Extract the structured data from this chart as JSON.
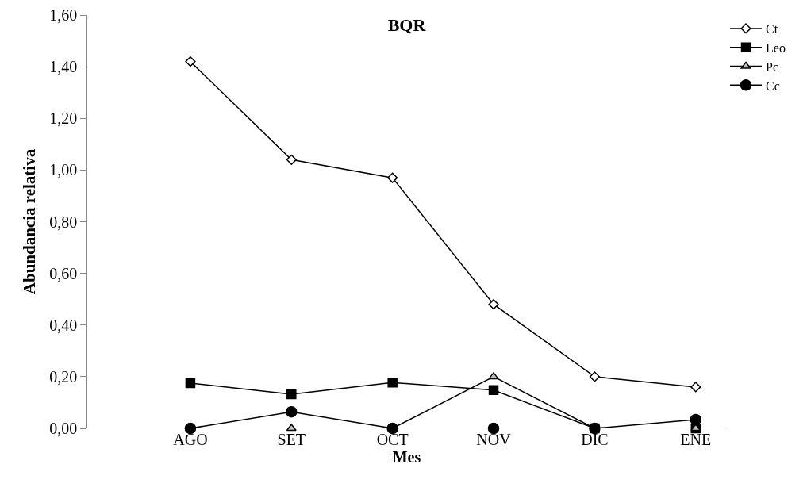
{
  "chart_data": {
    "type": "line",
    "title": "BQR",
    "xlabel": "Mes",
    "ylabel": "Abundancia relativa",
    "categories": [
      "AGO",
      "SET",
      "OCT",
      "NOV",
      "DIC",
      "ENE"
    ],
    "series": [
      {
        "name": "Ct",
        "color": "#000000",
        "marker": "diamond",
        "values": [
          1.42,
          1.04,
          0.97,
          0.48,
          0.2,
          0.16
        ]
      },
      {
        "name": "Leo",
        "color": "#000000",
        "marker": "square",
        "values": [
          0.175,
          0.132,
          0.177,
          0.148,
          0,
          0
        ]
      },
      {
        "name": "Pc",
        "color": "#000000",
        "marker": "triangle",
        "values": [
          0,
          0,
          0,
          0.2,
          0,
          0
        ]
      },
      {
        "name": "Cc",
        "color": "#000000",
        "marker": "circle",
        "values": [
          0,
          0.064,
          0,
          0,
          0,
          0.034
        ]
      }
    ],
    "ylim": [
      0,
      1.6
    ],
    "yticks": [
      {
        "value": 0,
        "label": "0,00"
      },
      {
        "value": 0.2,
        "label": "0,20"
      },
      {
        "value": 0.4,
        "label": "0,40"
      },
      {
        "value": 0.6,
        "label": "0,60"
      },
      {
        "value": 0.8,
        "label": "0,80"
      },
      {
        "value": 1,
        "label": "1,00"
      },
      {
        "value": 1.2,
        "label": "1,20"
      },
      {
        "value": 1.4,
        "label": "1,40"
      },
      {
        "value": 1.6,
        "label": "1,60"
      }
    ],
    "grid": false,
    "legend": "top right",
    "line_style": "solid"
  }
}
